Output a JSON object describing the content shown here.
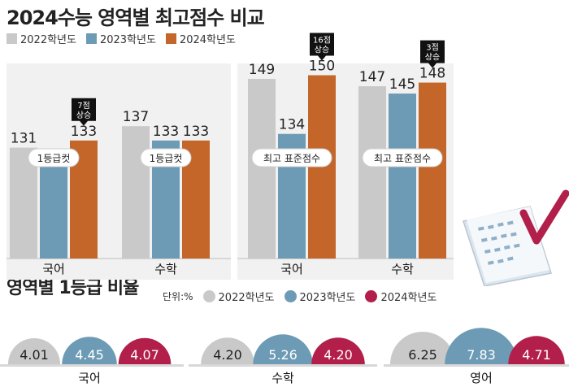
{
  "header": {
    "title": "2024수능 영역별 최고점수 비교",
    "subtitle": "영역별 1등급 비율"
  },
  "legend_top": [
    {
      "label": "2022학년도",
      "color": "#c9c9c9"
    },
    {
      "label": "2023학년도",
      "color": "#6d9bb5"
    },
    {
      "label": "2024학년도",
      "color": "#c4662a"
    }
  ],
  "legend_bottom": {
    "unit": "단위:%",
    "items": [
      {
        "label": "2022학년도",
        "color": "#c9c9c9"
      },
      {
        "label": "2023학년도",
        "color": "#6d9bb5"
      },
      {
        "label": "2024학년도",
        "color": "#b21f4a"
      }
    ]
  },
  "chart_data": [
    {
      "type": "bar",
      "title": "2024수능 영역별 최고점수 비교",
      "categories": [
        "국어",
        "수학"
      ],
      "panels": [
        {
          "metric": "1등급컷",
          "categories": [
            "국어",
            "수학"
          ],
          "series": [
            {
              "name": "2022학년도",
              "values": [
                131,
                137
              ]
            },
            {
              "name": "2023학년도",
              "values": [
                126,
                133
              ]
            },
            {
              "name": "2024학년도",
              "values": [
                133,
                133
              ]
            }
          ],
          "callouts": [
            {
              "category": "국어",
              "text": [
                "7점",
                "상승"
              ]
            }
          ]
        },
        {
          "metric": "최고 표준점수",
          "categories": [
            "국어",
            "수학"
          ],
          "series": [
            {
              "name": "2022학년도",
              "values": [
                149,
                147
              ]
            },
            {
              "name": "2023학년도",
              "values": [
                134,
                145
              ]
            },
            {
              "name": "2024학년도",
              "values": [
                150,
                148
              ]
            }
          ],
          "callouts": [
            {
              "category": "국어",
              "text": [
                "16점",
                "상승"
              ]
            },
            {
              "category": "수학",
              "text": [
                "3점",
                "상승"
              ]
            }
          ]
        }
      ]
    },
    {
      "type": "bar",
      "title": "영역별 1등급 비율",
      "unit": "단위:%",
      "categories": [
        "국어",
        "수학",
        "영어"
      ],
      "series": [
        {
          "name": "2022학년도",
          "values": [
            4.01,
            4.2,
            6.25
          ]
        },
        {
          "name": "2023학년도",
          "values": [
            4.45,
            5.26,
            7.83
          ]
        },
        {
          "name": "2024학년도",
          "values": [
            4.07,
            4.2,
            4.71
          ]
        }
      ]
    }
  ]
}
